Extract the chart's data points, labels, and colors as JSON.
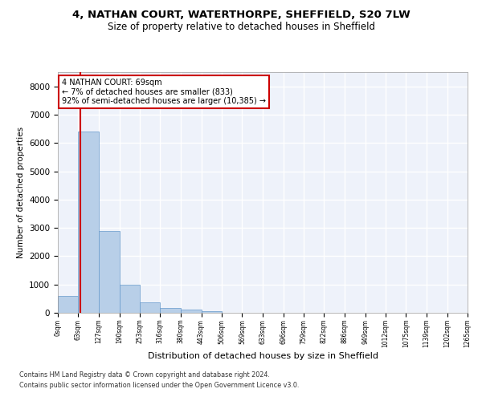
{
  "title_line1": "4, NATHAN COURT, WATERTHORPE, SHEFFIELD, S20 7LW",
  "title_line2": "Size of property relative to detached houses in Sheffield",
  "xlabel": "Distribution of detached houses by size in Sheffield",
  "ylabel": "Number of detached properties",
  "bar_color": "#b8cfe8",
  "bar_edge_color": "#6699cc",
  "background_color": "#eef2fa",
  "grid_color": "#ffffff",
  "annotation_text": "4 NATHAN COURT: 69sqm\n← 7% of detached houses are smaller (833)\n92% of semi-detached houses are larger (10,385) →",
  "vline_x": 69,
  "vline_color": "#cc0000",
  "annotation_box_color": "#ffffff",
  "annotation_box_edge": "#cc0000",
  "footer_line1": "Contains HM Land Registry data © Crown copyright and database right 2024.",
  "footer_line2": "Contains public sector information licensed under the Open Government Licence v3.0.",
  "bin_edges": [
    0,
    63,
    127,
    190,
    253,
    316,
    380,
    443,
    506,
    569,
    633,
    696,
    759,
    822,
    886,
    949,
    1012,
    1075,
    1139,
    1202,
    1265
  ],
  "bar_heights": [
    600,
    6400,
    2900,
    1000,
    370,
    160,
    100,
    70,
    0,
    0,
    0,
    0,
    0,
    0,
    0,
    0,
    0,
    0,
    0,
    0
  ],
  "ylim": [
    0,
    8500
  ],
  "yticks": [
    0,
    1000,
    2000,
    3000,
    4000,
    5000,
    6000,
    7000,
    8000
  ],
  "xtick_labels": [
    "0sqm",
    "63sqm",
    "127sqm",
    "190sqm",
    "253sqm",
    "316sqm",
    "380sqm",
    "443sqm",
    "506sqm",
    "569sqm",
    "633sqm",
    "696sqm",
    "759sqm",
    "822sqm",
    "886sqm",
    "949sqm",
    "1012sqm",
    "1075sqm",
    "1139sqm",
    "1202sqm",
    "1265sqm"
  ]
}
